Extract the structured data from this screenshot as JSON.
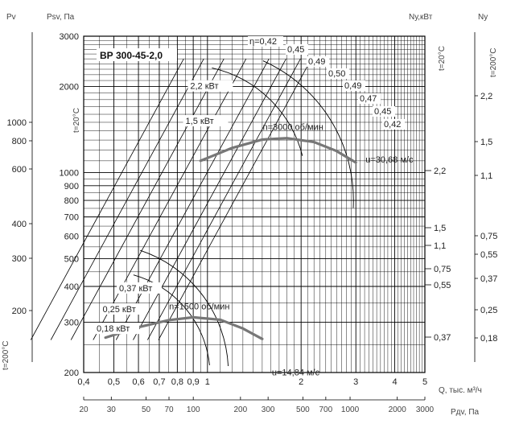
{
  "chart_data": {
    "type": "line",
    "title": "ВР 300-45-2,0",
    "headers": {
      "pv": "Pv",
      "psv": "Psv, Па",
      "nkw": "Nу,кВт",
      "ny": "Nу",
      "t20_top": "t=20°C",
      "t200_top": "t=200°C",
      "t20_left": "t=20°C",
      "t200_left": "t=200°C",
      "q_axis": "Q, тыс. м³/ч",
      "pd_axis": "Pдv, Па"
    },
    "xlim": [
      0.4,
      5
    ],
    "ylim": [
      200,
      3000
    ],
    "x_ticks": [
      {
        "v": 0.4,
        "t": "0,4"
      },
      {
        "v": 0.5,
        "t": "0,5"
      },
      {
        "v": 0.6,
        "t": "0,6"
      },
      {
        "v": 0.7,
        "t": "0,7"
      },
      {
        "v": 0.8,
        "t": "0,8"
      },
      {
        "v": 0.9,
        "t": "0,9"
      },
      {
        "v": 1,
        "t": "1"
      },
      {
        "v": 2,
        "t": "2"
      },
      {
        "v": 3,
        "t": "3"
      },
      {
        "v": 4,
        "t": "4"
      },
      {
        "v": 5,
        "t": "5"
      }
    ],
    "y_ticks": [
      {
        "v": 3000,
        "t": "3000"
      },
      {
        "v": 2000,
        "t": "2000"
      },
      {
        "v": 1000,
        "t": "1000"
      },
      {
        "v": 900,
        "t": "900"
      },
      {
        "v": 800,
        "t": "800"
      },
      {
        "v": 700,
        "t": "700"
      },
      {
        "v": 600,
        "t": "600"
      },
      {
        "v": 500,
        "t": "500"
      },
      {
        "v": 400,
        "t": "400"
      },
      {
        "v": 300,
        "t": "300"
      },
      {
        "v": 200,
        "t": "200"
      }
    ],
    "pv_ticks": [
      {
        "v": 1000,
        "t": "1000"
      },
      {
        "v": 800,
        "t": "800"
      },
      {
        "v": 600,
        "t": "600"
      },
      {
        "v": 400,
        "t": "400"
      },
      {
        "v": 300,
        "t": "300"
      },
      {
        "v": 200,
        "t": "200"
      }
    ],
    "nkw_ticks": [
      {
        "v": 2.2,
        "t": "2,2"
      },
      {
        "v": 1.5,
        "t": "1,5"
      },
      {
        "v": 1.1,
        "t": "1,1"
      },
      {
        "v": 0.75,
        "t": "0,75"
      },
      {
        "v": 0.55,
        "t": "0,55"
      },
      {
        "v": 0.37,
        "t": "0,37"
      }
    ],
    "ny_ticks": [
      {
        "v": 2.2,
        "t": "2,2"
      },
      {
        "v": 1.5,
        "t": "1,5"
      },
      {
        "v": 1.1,
        "t": "1,1"
      },
      {
        "v": 0.75,
        "t": "0,75"
      },
      {
        "v": 0.55,
        "t": "0,55"
      },
      {
        "v": 0.37,
        "t": "0,37"
      },
      {
        "v": 0.25,
        "t": "0,25"
      },
      {
        "v": 0.18,
        "t": "0,18"
      }
    ],
    "pd_ticks": [
      {
        "v": 20,
        "t": "20"
      },
      {
        "v": 30,
        "t": "30"
      },
      {
        "v": 50,
        "t": "50"
      },
      {
        "v": 70,
        "t": "70"
      },
      {
        "v": 100,
        "t": "100"
      },
      {
        "v": 200,
        "t": "200"
      },
      {
        "v": 300,
        "t": "300"
      },
      {
        "v": 500,
        "t": "500"
      },
      {
        "v": 700,
        "t": "700"
      },
      {
        "v": 1000,
        "t": "1000"
      },
      {
        "v": 2000,
        "t": "2000"
      },
      {
        "v": 3000,
        "t": "3000"
      }
    ],
    "efficiency_labels": [
      "η=0,42",
      "0,45",
      "0,49",
      "0,50",
      "0,49",
      "0,47",
      "0,45",
      "0,42"
    ],
    "efficiency_rays_q_at_p2000": [
      0.75,
      0.87,
      1.01,
      1.19,
      1.41,
      1.6,
      1.78,
      1.93
    ],
    "speed_curves": [
      {
        "label": "n=3000 об/мин",
        "velocity_label": "u=30,68 м/с",
        "points": [
          [
            0.95,
            1100
          ],
          [
            1.2,
            1220
          ],
          [
            1.5,
            1305
          ],
          [
            1.8,
            1320
          ],
          [
            2.2,
            1280
          ],
          [
            2.6,
            1190
          ],
          [
            3.0,
            1085
          ]
        ]
      },
      {
        "label": "n=1500 об/мин",
        "velocity_label": "u=14,84 м/с",
        "points": [
          [
            0.47,
            265
          ],
          [
            0.6,
            288
          ],
          [
            0.75,
            305
          ],
          [
            0.9,
            312
          ],
          [
            1.1,
            306
          ],
          [
            1.3,
            285
          ],
          [
            1.5,
            262
          ]
        ]
      }
    ],
    "power_labels": [
      {
        "t": "2,2 кВт",
        "q": 0.88,
        "p": 1960
      },
      {
        "t": "1,5 кВт",
        "q": 0.85,
        "p": 1480
      },
      {
        "t": "0,37 кВт",
        "q": 0.52,
        "p": 385
      },
      {
        "t": "0,25 кВт",
        "q": 0.46,
        "p": 325
      },
      {
        "t": "0,18 кВт",
        "q": 0.44,
        "p": 278
      }
    ]
  }
}
